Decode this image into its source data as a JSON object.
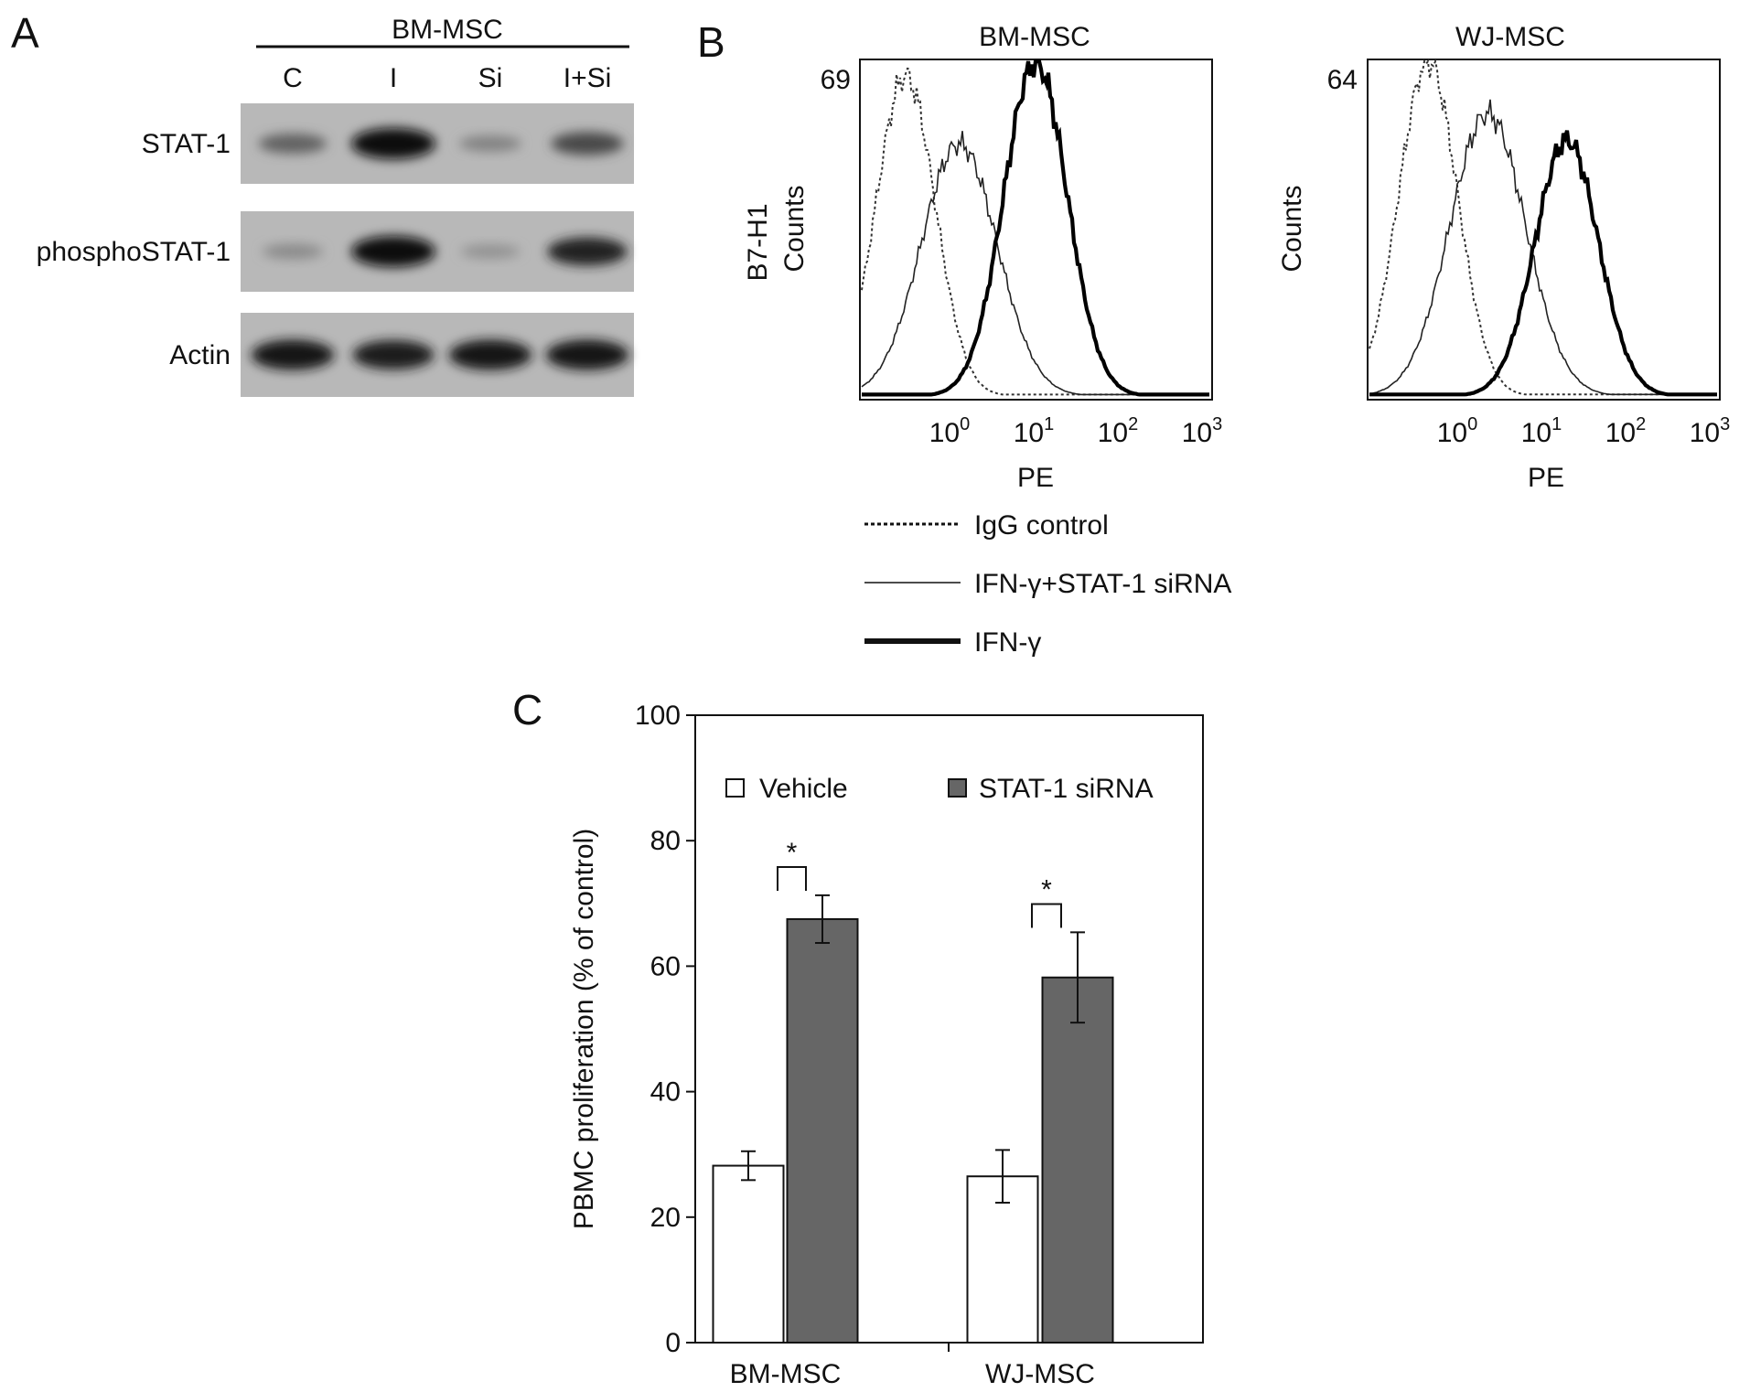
{
  "panels": {
    "a": {
      "letter": "A",
      "group_label": "BM-MSC",
      "lanes": [
        "C",
        "I",
        "Si",
        "I+Si"
      ],
      "rows": [
        {
          "label": "STAT-1",
          "intensity": [
            0.45,
            1.0,
            0.25,
            0.6
          ]
        },
        {
          "label": "phosphoSTAT-1",
          "intensity": [
            0.2,
            1.0,
            0.15,
            0.85
          ]
        },
        {
          "label": "Actin",
          "intensity": [
            0.95,
            0.9,
            0.95,
            0.95
          ]
        }
      ]
    },
    "b": {
      "letter": "B",
      "histograms": [
        {
          "title": "BM-MSC",
          "ymax_label": "69",
          "ylabel_extra": "B7-H1",
          "ylabel": "Counts",
          "xlabel": "PE",
          "ymax": 69,
          "peaks": {
            "igg": {
              "center": 0.3,
              "height": 66
            },
            "sirna": {
              "center": 1.3,
              "height": 52
            },
            "ifn": {
              "center": 10.5,
              "height": 69
            }
          }
        },
        {
          "title": "WJ-MSC",
          "ymax_label": "64",
          "ylabel_extra": "",
          "ylabel": "Counts",
          "xlabel": "PE",
          "ymax": 64,
          "peaks": {
            "igg": {
              "center": 0.45,
              "height": 64
            },
            "sirna": {
              "center": 2.3,
              "height": 54
            },
            "ifn": {
              "center": 20,
              "height": 49
            }
          }
        }
      ],
      "x_ticks": [
        {
          "base": "10",
          "exp": "0"
        },
        {
          "base": "10",
          "exp": "1"
        },
        {
          "base": "10",
          "exp": "2"
        },
        {
          "base": "10",
          "exp": "3"
        }
      ],
      "legend": [
        {
          "label": "IgG control",
          "style": "dotted"
        },
        {
          "label": "IFN-γ+STAT-1 siRNA",
          "style": "thin"
        },
        {
          "label": "IFN-γ",
          "style": "thick"
        }
      ]
    },
    "c": {
      "letter": "C"
    }
  },
  "chart_data": {
    "type": "bar",
    "categories": [
      "BM-MSC",
      "WJ-MSC"
    ],
    "series": [
      {
        "name": "Vehicle",
        "color": "#ffffff",
        "values": [
          28.2,
          26.5
        ],
        "errors": [
          2.3,
          4.2
        ]
      },
      {
        "name": "STAT-1 siRNA",
        "color": "#666666",
        "values": [
          67.5,
          58.2
        ],
        "errors": [
          3.8,
          7.2
        ]
      }
    ],
    "ylabel": "PBMC proliferation (% of control)",
    "ylim": [
      0,
      100
    ],
    "yticks": [
      0,
      20,
      40,
      60,
      80,
      100
    ],
    "significance": [
      "*",
      "*"
    ],
    "legend_position": "top"
  }
}
